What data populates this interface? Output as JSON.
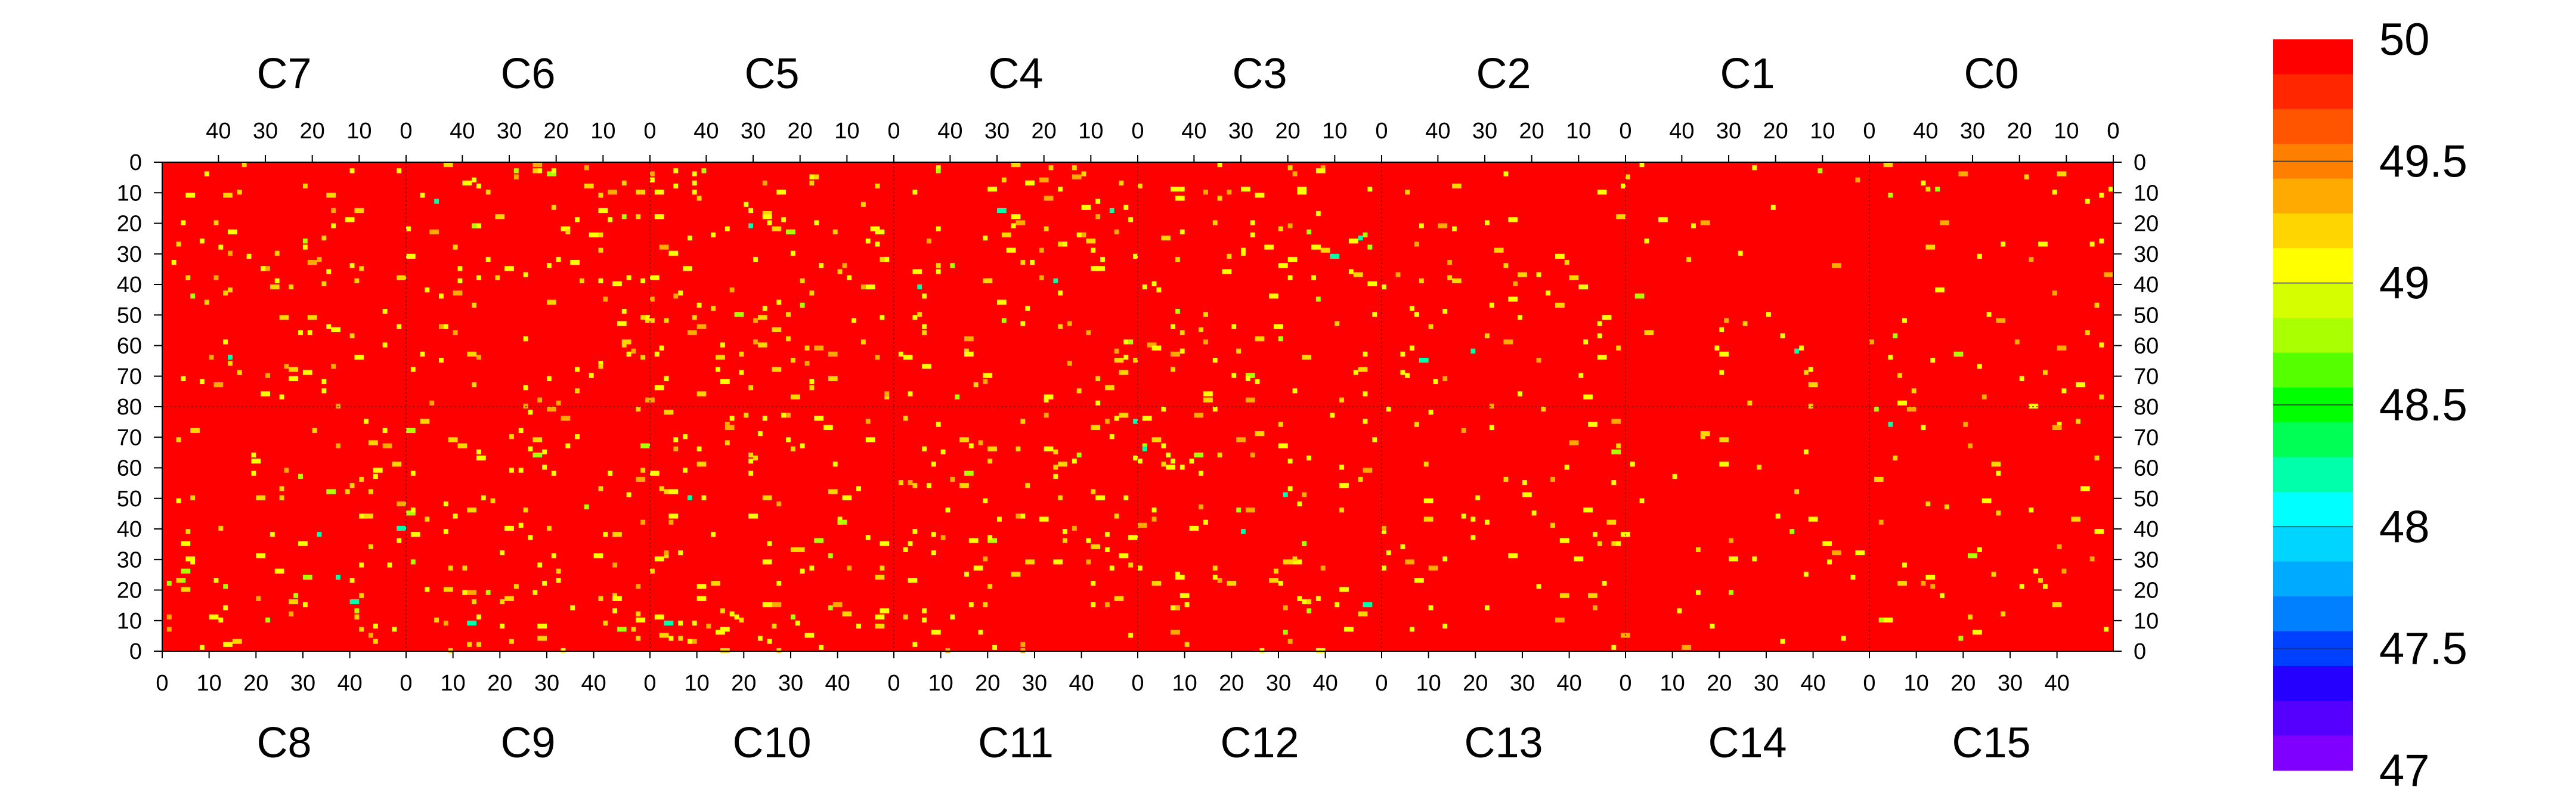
{
  "chart_data": {
    "type": "heatmap",
    "title": "",
    "z_range": [
      47,
      50
    ],
    "colorbar": {
      "labels": [
        "50",
        "49.5",
        "49",
        "48.5",
        "48",
        "47.5",
        "47"
      ],
      "values": [
        50,
        49.5,
        49,
        48.5,
        48,
        47.5,
        47
      ],
      "levels": 20,
      "colors_top_to_bottom": [
        "#ff0000",
        "#ff2600",
        "#ff5500",
        "#ff8000",
        "#ffaa00",
        "#ffd500",
        "#ffff00",
        "#d5ff00",
        "#aaff00",
        "#55ff00",
        "#00ff00",
        "#00ff55",
        "#00ffaa",
        "#00ffff",
        "#00d5ff",
        "#00aaff",
        "#0080ff",
        "#0040ff",
        "#2600ff",
        "#5500ff",
        "#8000ff"
      ]
    },
    "chip_columns": 8,
    "chip_size": [
      52,
      80
    ],
    "top_row": {
      "chips": [
        "C7",
        "C6",
        "C5",
        "C4",
        "C3",
        "C2",
        "C1",
        "C0"
      ],
      "column_axis": "reversed",
      "column_ticks": [
        "40",
        "30",
        "20",
        "10",
        "0"
      ],
      "row_ticks": [
        "0",
        "10",
        "20",
        "30",
        "40",
        "50",
        "60",
        "70",
        "80"
      ]
    },
    "bottom_row": {
      "chips": [
        "C8",
        "C9",
        "C10",
        "C11",
        "C12",
        "C13",
        "C14",
        "C15"
      ],
      "column_axis": "normal",
      "column_ticks": [
        "0",
        "10",
        "20",
        "30",
        "40"
      ],
      "row_ticks": [
        "70",
        "60",
        "50",
        "40",
        "30",
        "20",
        "10",
        "0"
      ]
    },
    "background_value": 50,
    "pixel_value_estimates": [
      49.0,
      49.1,
      49.3,
      48.8,
      48.1
    ],
    "pixel_summary": "Most pixels at 50 (red); scattered pixels around 49 (yellow-green) with a few near 48 (cyan)"
  }
}
